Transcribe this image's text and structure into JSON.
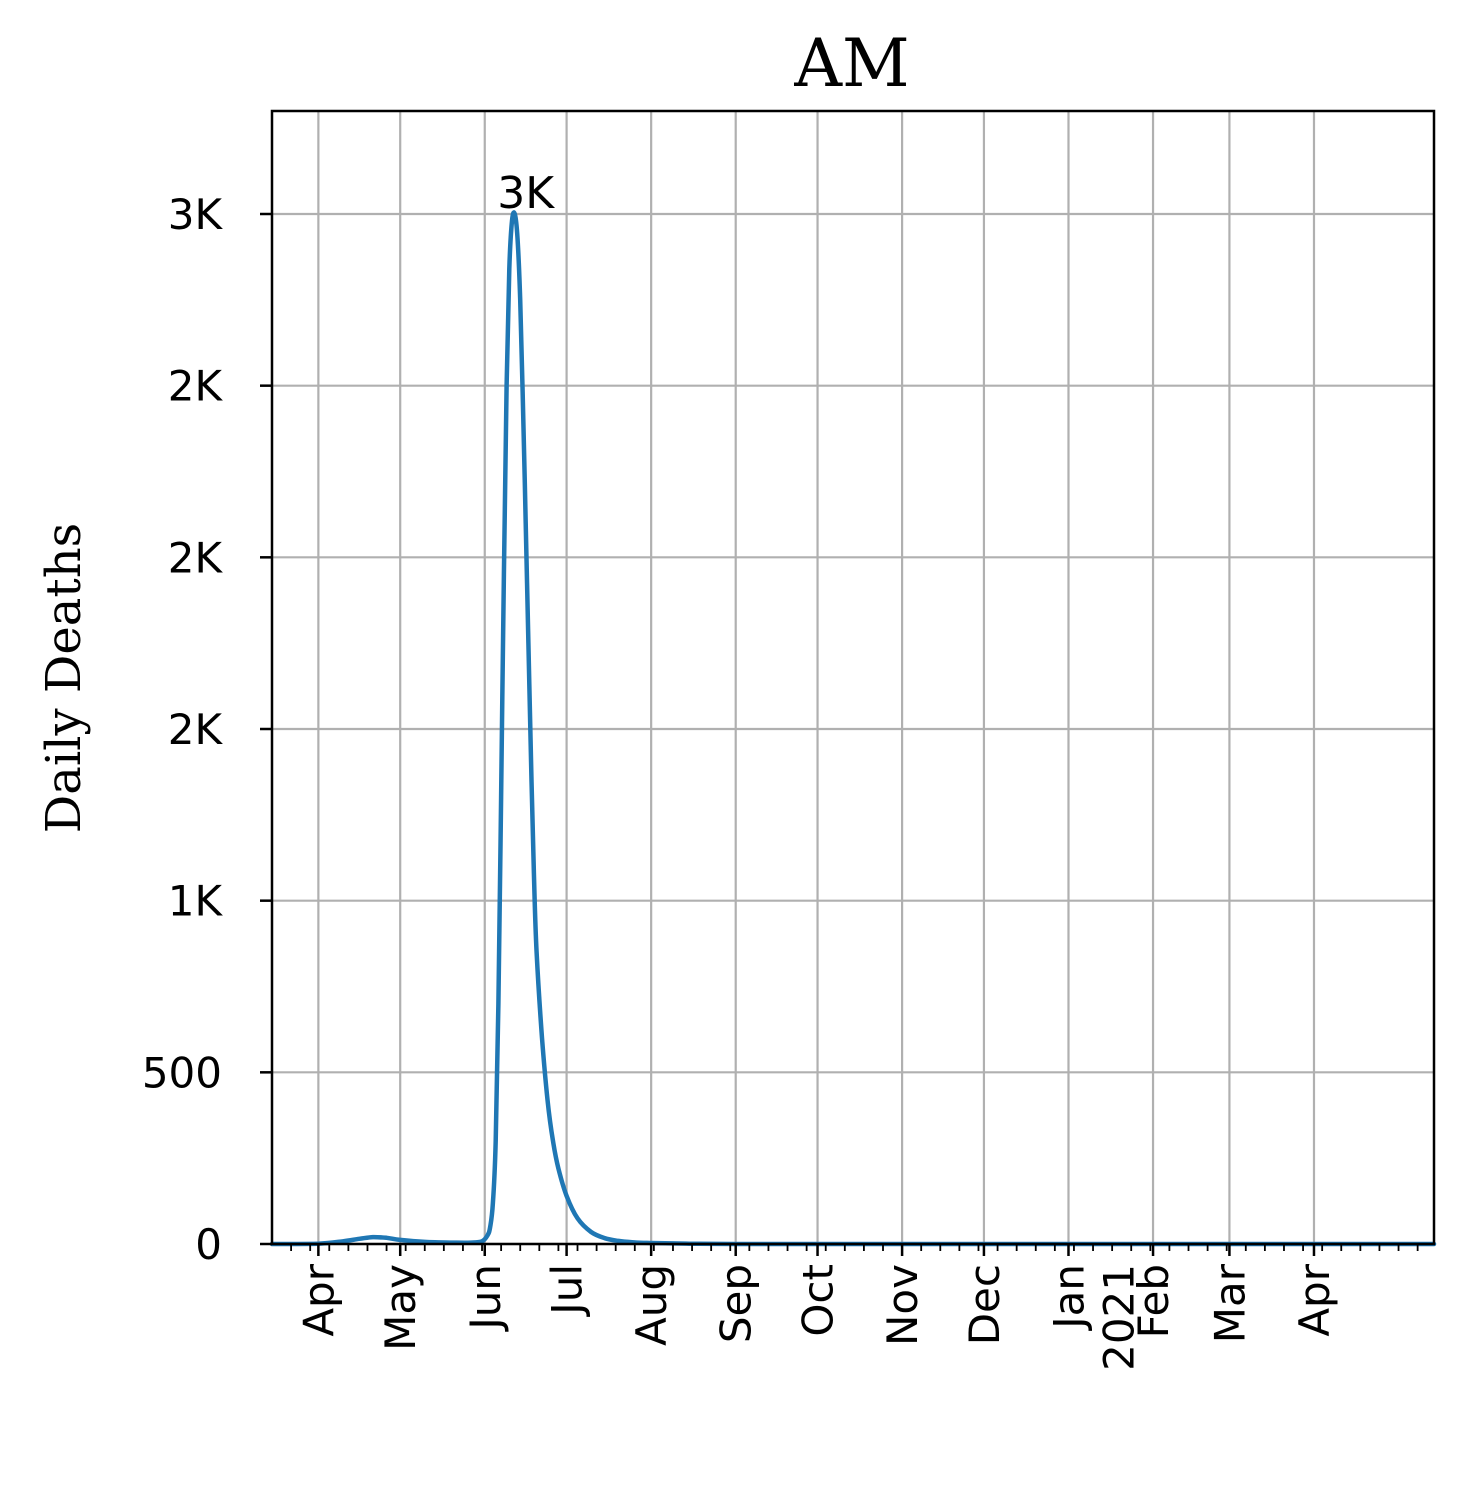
{
  "chart_data": {
    "type": "line",
    "title": "AM",
    "xlabel": "",
    "ylabel": "Daily Deaths",
    "xlim": [
      "2020-03-15",
      "2021-05-15"
    ],
    "ylim": [
      0,
      3300
    ],
    "grid": true,
    "x_ticks": [
      {
        "date": "2020-04-01",
        "label": "Apr"
      },
      {
        "date": "2020-05-01",
        "label": "May"
      },
      {
        "date": "2020-06-01",
        "label": "Jun"
      },
      {
        "date": "2020-07-01",
        "label": "Jul"
      },
      {
        "date": "2020-08-01",
        "label": "Aug"
      },
      {
        "date": "2020-09-01",
        "label": "Sep"
      },
      {
        "date": "2020-10-01",
        "label": "Oct"
      },
      {
        "date": "2020-11-01",
        "label": "Nov"
      },
      {
        "date": "2020-12-01",
        "label": "Dec"
      },
      {
        "date": "2021-01-01",
        "label": "Jan\n2021"
      },
      {
        "date": "2021-02-01",
        "label": "Feb"
      },
      {
        "date": "2021-03-01",
        "label": "Mar"
      },
      {
        "date": "2021-04-01",
        "label": "Apr"
      }
    ],
    "y_ticks": [
      {
        "value": 0,
        "label": "0"
      },
      {
        "value": 500,
        "label": "500"
      },
      {
        "value": 1000,
        "label": "1K"
      },
      {
        "value": 1500,
        "label": "2K"
      },
      {
        "value": 2000,
        "label": "2K"
      },
      {
        "value": 2500,
        "label": "2K"
      },
      {
        "value": 3000,
        "label": "3K"
      }
    ],
    "annotations": [
      {
        "text": "3K",
        "x": "2020-06-16",
        "y": 3000
      }
    ],
    "series": [
      {
        "color": "#1f77b4",
        "points": [
          [
            "2020-03-15",
            0
          ],
          [
            "2020-04-01",
            1
          ],
          [
            "2020-04-10",
            8
          ],
          [
            "2020-04-16",
            15
          ],
          [
            "2020-04-21",
            20
          ],
          [
            "2020-04-26",
            18
          ],
          [
            "2020-05-01",
            12
          ],
          [
            "2020-05-10",
            6
          ],
          [
            "2020-05-20",
            4
          ],
          [
            "2020-05-27",
            4
          ],
          [
            "2020-05-31",
            8
          ],
          [
            "2020-06-02",
            25
          ],
          [
            "2020-06-03",
            50
          ],
          [
            "2020-06-04",
            120
          ],
          [
            "2020-06-05",
            300
          ],
          [
            "2020-06-06",
            700
          ],
          [
            "2020-06-07",
            1300
          ],
          [
            "2020-06-08",
            1950
          ],
          [
            "2020-06-09",
            2500
          ],
          [
            "2020-06-10",
            2840
          ],
          [
            "2020-06-11",
            2980
          ],
          [
            "2020-06-12",
            3000
          ],
          [
            "2020-06-13",
            2930
          ],
          [
            "2020-06-14",
            2750
          ],
          [
            "2020-06-15",
            2450
          ],
          [
            "2020-06-16",
            2100
          ],
          [
            "2020-06-17",
            1750
          ],
          [
            "2020-06-18",
            1400
          ],
          [
            "2020-06-19",
            1080
          ],
          [
            "2020-06-20",
            850
          ],
          [
            "2020-06-22",
            600
          ],
          [
            "2020-06-24",
            420
          ],
          [
            "2020-06-26",
            300
          ],
          [
            "2020-06-28",
            220
          ],
          [
            "2020-07-01",
            140
          ],
          [
            "2020-07-05",
            75
          ],
          [
            "2020-07-10",
            35
          ],
          [
            "2020-07-15",
            17
          ],
          [
            "2020-07-20",
            9
          ],
          [
            "2020-07-25",
            5
          ],
          [
            "2020-08-01",
            3
          ],
          [
            "2020-08-15",
            1
          ],
          [
            "2020-09-01",
            0
          ],
          [
            "2020-10-01",
            0
          ],
          [
            "2020-12-01",
            0
          ],
          [
            "2021-02-01",
            0
          ],
          [
            "2021-05-15",
            0
          ]
        ]
      }
    ]
  }
}
